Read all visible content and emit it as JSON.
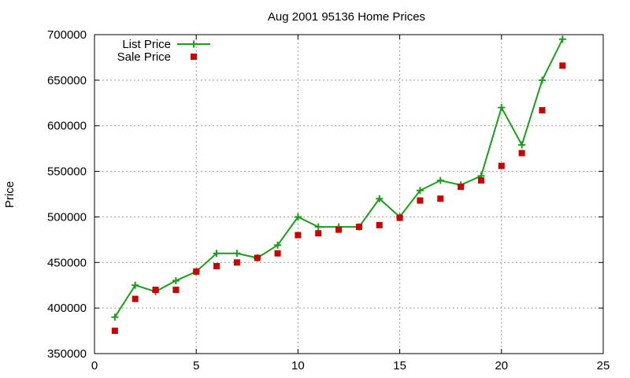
{
  "chart_data": {
    "type": "line",
    "title": "Aug 2001 95136 Home Prices",
    "xlabel": "",
    "ylabel": "Price",
    "xlim": [
      0,
      25
    ],
    "ylim": [
      350000,
      700000
    ],
    "xticks": [
      0,
      5,
      10,
      15,
      20,
      25
    ],
    "yticks": [
      350000,
      400000,
      450000,
      500000,
      550000,
      600000,
      650000,
      700000
    ],
    "grid": true,
    "legend_position": "top-left",
    "series": [
      {
        "name": "List Price",
        "style": "line-plus-markers",
        "color": "#1a9e1a",
        "x": [
          1,
          2,
          3,
          4,
          5,
          6,
          7,
          8,
          9,
          10,
          11,
          12,
          13,
          14,
          15,
          16,
          17,
          18,
          19,
          20,
          21,
          22,
          23
        ],
        "y": [
          390000,
          425000,
          418000,
          430000,
          440000,
          460000,
          460000,
          455000,
          469000,
          500000,
          489000,
          489000,
          489000,
          520000,
          500000,
          529000,
          540000,
          535000,
          545000,
          620000,
          579000,
          650000,
          695000
        ]
      },
      {
        "name": "Sale Price",
        "style": "square-markers",
        "color": "#cc0000",
        "x": [
          1,
          2,
          3,
          4,
          5,
          6,
          7,
          8,
          9,
          10,
          11,
          12,
          13,
          14,
          15,
          16,
          17,
          18,
          19,
          20,
          21,
          22,
          23
        ],
        "y": [
          375000,
          410000,
          420000,
          420000,
          440000,
          446000,
          450000,
          455000,
          460000,
          480000,
          482000,
          486000,
          489000,
          491000,
          499000,
          518000,
          520000,
          533000,
          540000,
          556000,
          570000,
          617000,
          666000
        ]
      }
    ]
  }
}
